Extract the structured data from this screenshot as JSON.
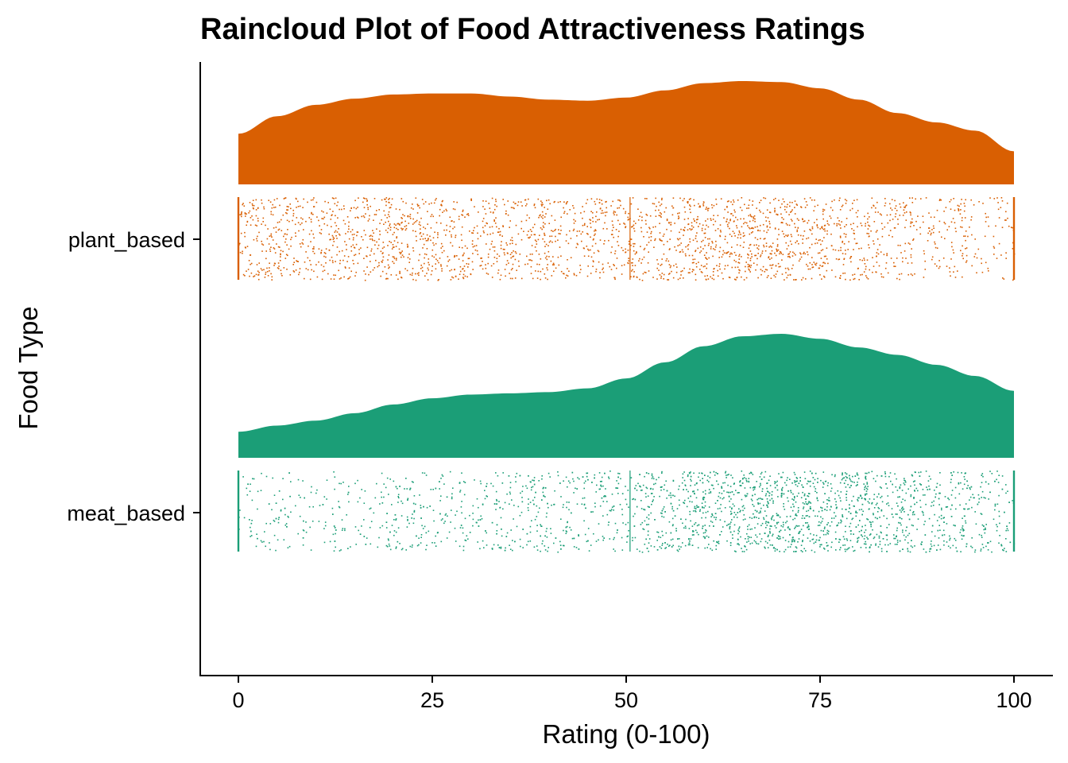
{
  "chart_data": {
    "type": "raincloud",
    "title": "Raincloud Plot of Food Attractiveness Ratings",
    "xlabel": "Rating (0-100)",
    "ylabel": "Food Type",
    "xlim": [
      0,
      100
    ],
    "x_ticks": [
      0,
      25,
      50,
      75,
      100
    ],
    "categories": [
      "plant_based",
      "meat_based"
    ],
    "grid": false,
    "legend": "none",
    "series": [
      {
        "name": "plant_based",
        "color": "#D95F02",
        "density_x": [
          0,
          5,
          10,
          15,
          20,
          25,
          30,
          35,
          40,
          45,
          50,
          55,
          60,
          65,
          70,
          75,
          80,
          85,
          90,
          95,
          100
        ],
        "density_relative": [
          0.49,
          0.66,
          0.77,
          0.83,
          0.87,
          0.88,
          0.88,
          0.85,
          0.82,
          0.81,
          0.84,
          0.91,
          0.98,
          1.0,
          0.99,
          0.93,
          0.82,
          0.69,
          0.6,
          0.52,
          0.32
        ],
        "rain_density_weights": [
          1.0,
          1.0,
          1.05,
          1.1,
          1.1,
          1.05,
          1.05,
          1.0,
          0.95,
          0.9,
          0.95,
          1.1,
          1.3,
          1.4,
          1.4,
          1.2,
          1.0,
          0.8,
          0.65,
          0.55,
          0.5
        ],
        "spikes_at": [
          0,
          50.5,
          100
        ]
      },
      {
        "name": "meat_based",
        "color": "#1B9E77",
        "density_x": [
          0,
          5,
          10,
          15,
          20,
          25,
          30,
          35,
          40,
          45,
          50,
          55,
          60,
          65,
          70,
          75,
          80,
          85,
          90,
          95,
          100
        ],
        "density_relative": [
          0.21,
          0.26,
          0.3,
          0.36,
          0.43,
          0.48,
          0.51,
          0.52,
          0.53,
          0.56,
          0.64,
          0.77,
          0.9,
          0.98,
          1.0,
          0.96,
          0.89,
          0.83,
          0.75,
          0.66,
          0.54
        ],
        "rain_density_weights": [
          0.35,
          0.4,
          0.45,
          0.5,
          0.55,
          0.65,
          0.7,
          0.7,
          0.68,
          0.65,
          0.8,
          1.2,
          1.55,
          1.8,
          1.9,
          1.8,
          1.55,
          1.3,
          1.05,
          0.85,
          0.75
        ],
        "spikes_at": [
          0,
          50.5,
          100
        ]
      }
    ]
  }
}
